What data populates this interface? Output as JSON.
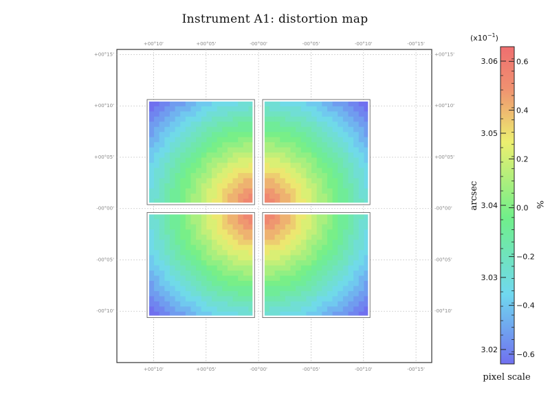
{
  "title": "Instrument A1: distortion map",
  "chart_data": {
    "type": "heatmap",
    "title": "Instrument A1: distortion map",
    "x_ticks": [
      "+00°10'",
      "+00°05'",
      "-00°00'",
      "-00°05'",
      "-00°10'",
      "-00°15'"
    ],
    "y_ticks_left": [
      "+00°15'",
      "+00°10'",
      "+00°05'",
      "-00°00'",
      "-00°05'",
      "-00°10'"
    ],
    "y_ticks_right": [
      "+00°15'",
      "+00°10'",
      "+00°05'",
      "-00°00'",
      "-00°05'",
      "-00°10'"
    ],
    "x_range_arcmin": [
      13.5,
      -16.5
    ],
    "y_range_arcmin": [
      -15,
      15.5
    ],
    "grid": true,
    "detectors": [
      {
        "name": "upper-left",
        "x_arcmin": [
          10.5,
          0.5
        ],
        "y_arcmin": [
          10.5,
          0.5
        ]
      },
      {
        "name": "upper-right",
        "x_arcmin": [
          -0.5,
          -10.5
        ],
        "y_arcmin": [
          10.5,
          0.5
        ]
      },
      {
        "name": "lower-left",
        "x_arcmin": [
          10.5,
          0.5
        ],
        "y_arcmin": [
          -0.5,
          -10.5
        ]
      },
      {
        "name": "lower-right",
        "x_arcmin": [
          -0.5,
          -10.5
        ],
        "y_arcmin": [
          -0.5,
          -10.5
        ]
      }
    ],
    "distortion_center_arcmin": [
      0,
      0
    ],
    "colorbar": {
      "label_left": "arcsec",
      "label_right": "%",
      "exponent": "(x10",
      "exponent_sup": "−1",
      "exponent_close": ")",
      "bottom_label": "pixel scale",
      "arcsec_range": [
        3.018,
        3.062
      ],
      "percent_range": [
        -0.64,
        0.66
      ],
      "left_ticks": [
        3.02,
        3.03,
        3.04,
        3.05,
        3.06
      ],
      "left_tick_labels": [
        "3.02",
        "3.03",
        "3.04",
        "3.05",
        "3.06"
      ],
      "right_ticks": [
        -0.6,
        -0.4,
        -0.2,
        0.0,
        0.2,
        0.4,
        0.6
      ],
      "right_tick_labels": [
        "−0.6",
        "−0.4",
        "−0.2",
        "0.0",
        "0.2",
        "0.4",
        "0.6"
      ],
      "colors": [
        "#7070ef",
        "#70d8ef",
        "#70ef8a",
        "#ecef70",
        "#ef9070",
        "#ef6f70"
      ]
    }
  }
}
